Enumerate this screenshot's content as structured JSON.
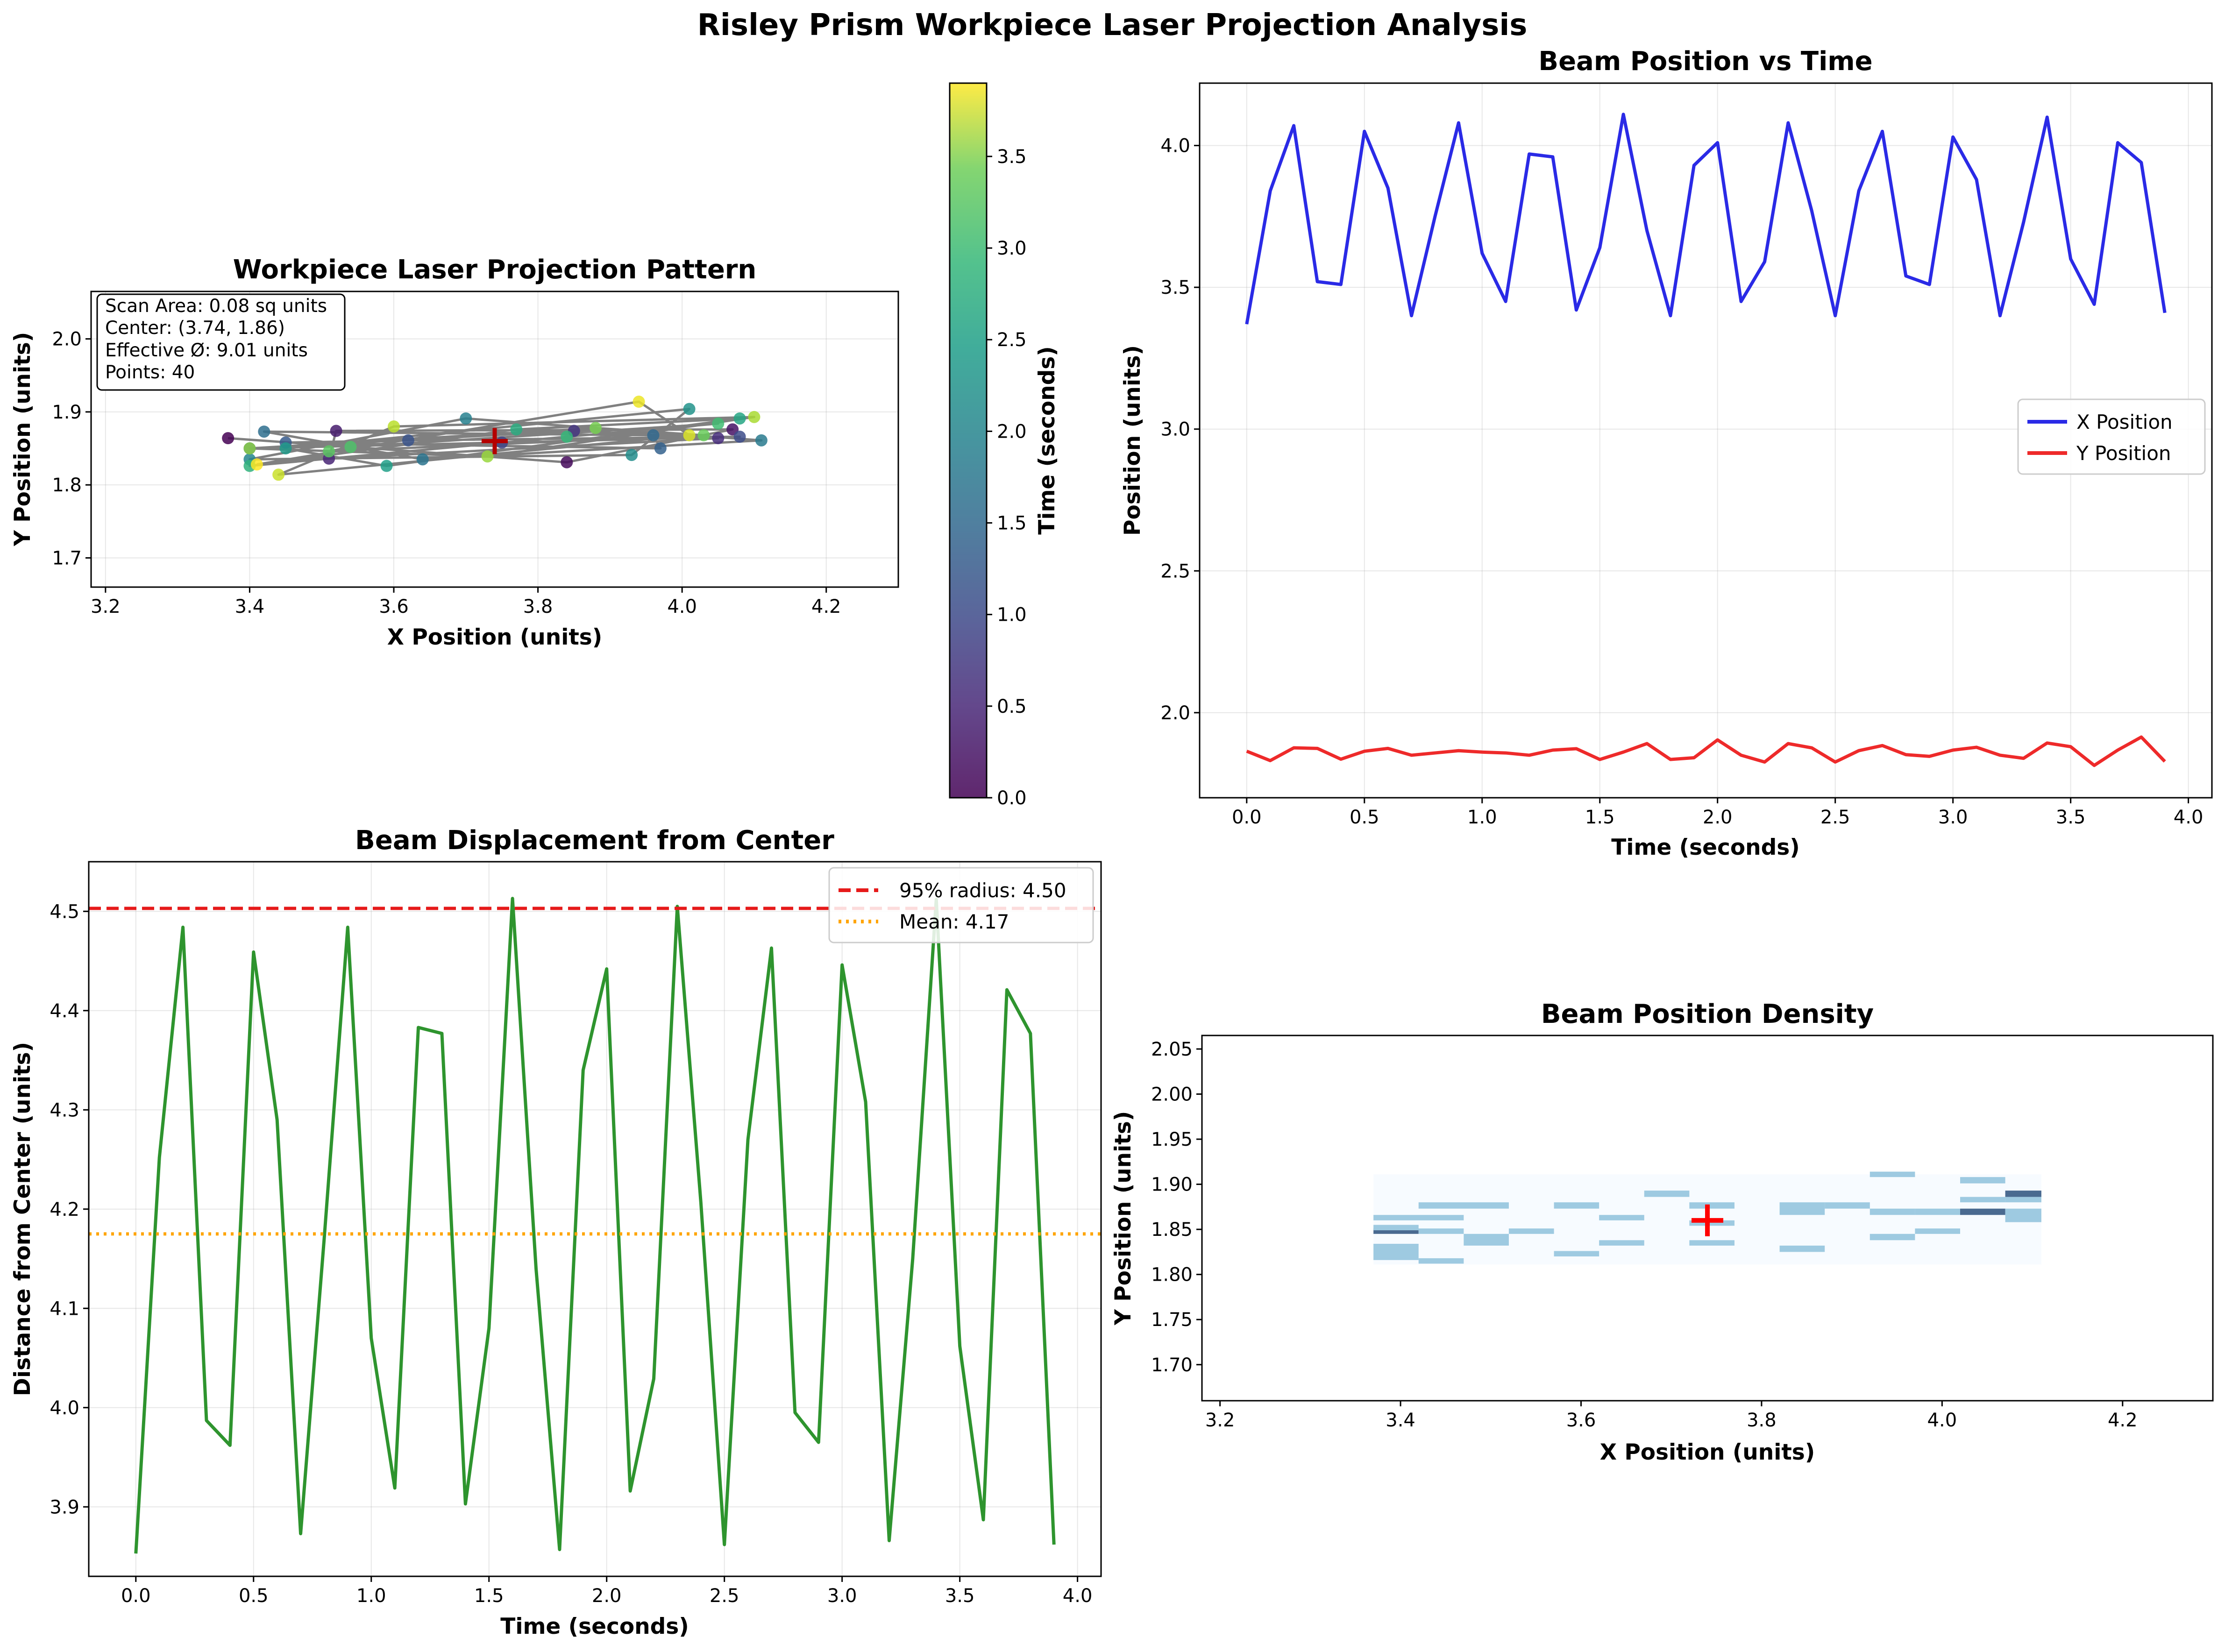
{
  "figure_title": "Risley Prism Workpiece Laser Projection Analysis",
  "colors": {
    "x_series": "#2a2ae6",
    "y_series": "#ee2a2a",
    "displacement": "#2e942e",
    "radius95": "#e61a1a",
    "mean": "#ffa500",
    "path": "#808080",
    "center_marker": "#b40000",
    "density_marker": "#ff0000"
  },
  "chart_data": [
    {
      "id": "projection",
      "type": "scatter",
      "title": "Workpiece Laser Projection Pattern",
      "xlabel": "X Position (units)",
      "ylabel": "Y Position (units)",
      "xlim": [
        3.18,
        4.3
      ],
      "ylim": [
        1.66,
        2.065
      ],
      "xticks": [
        "3.2",
        "3.4",
        "3.6",
        "3.8",
        "4.0",
        "4.2"
      ],
      "yticks": [
        "1.7",
        "1.8",
        "1.9",
        "2.0"
      ],
      "grid": true,
      "colorbar": {
        "label": "Time (seconds)",
        "range": [
          0.0,
          3.9
        ],
        "ticks": [
          "0.0",
          "0.5",
          "1.0",
          "1.5",
          "2.0",
          "2.5",
          "3.0",
          "3.5"
        ],
        "colormap": "viridis"
      },
      "center": {
        "x": 3.74,
        "y": 1.86
      },
      "info_box": [
        "Scan Area: 0.08 sq units",
        "Center: (3.74, 1.86)",
        "Effective Ø: 9.01 units",
        "Points: 40"
      ],
      "t": [
        0.0,
        0.1,
        0.2,
        0.3,
        0.4,
        0.5,
        0.6,
        0.7,
        0.8,
        0.9,
        1.0,
        1.1,
        1.2,
        1.3,
        1.4,
        1.5,
        1.6,
        1.7,
        1.8,
        1.9,
        2.0,
        2.1,
        2.2,
        2.3,
        2.4,
        2.5,
        2.6,
        2.7,
        2.8,
        2.9,
        3.0,
        3.1,
        3.2,
        3.3,
        3.4,
        3.5,
        3.6,
        3.7,
        3.8,
        3.9
      ],
      "x": [
        3.37,
        3.84,
        4.07,
        3.52,
        3.51,
        4.05,
        3.85,
        3.4,
        3.75,
        4.08,
        3.62,
        3.45,
        3.97,
        3.96,
        3.42,
        3.64,
        4.11,
        3.7,
        3.4,
        3.93,
        4.01,
        3.45,
        3.59,
        4.08,
        3.77,
        3.4,
        3.84,
        4.05,
        3.54,
        3.51,
        4.03,
        3.88,
        3.4,
        3.73,
        4.1,
        3.6,
        3.44,
        4.01,
        3.94,
        3.41
      ],
      "y": [
        1.864,
        1.831,
        1.876,
        1.874,
        1.836,
        1.864,
        1.874,
        1.85,
        1.858,
        1.866,
        1.861,
        1.858,
        1.85,
        1.868,
        1.873,
        1.835,
        1.861,
        1.891,
        1.835,
        1.841,
        1.904,
        1.85,
        1.826,
        1.891,
        1.876,
        1.826,
        1.866,
        1.884,
        1.852,
        1.846,
        1.868,
        1.878,
        1.85,
        1.839,
        1.893,
        1.88,
        1.814,
        1.868,
        1.914,
        1.828
      ]
    },
    {
      "id": "position_time",
      "type": "line",
      "title": "Beam Position vs Time",
      "xlabel": "Time (seconds)",
      "ylabel": "Position (units)",
      "xlim": [
        -0.2,
        4.1
      ],
      "ylim": [
        1.7,
        4.22
      ],
      "xticks": [
        "0.0",
        "0.5",
        "1.0",
        "1.5",
        "2.0",
        "2.5",
        "3.0",
        "3.5",
        "4.0"
      ],
      "yticks": [
        "2.0",
        "2.5",
        "3.0",
        "3.5",
        "4.0"
      ],
      "grid": true,
      "legend": "center-right",
      "series": [
        {
          "name": "X Position",
          "x": [
            0.0,
            0.1,
            0.2,
            0.3,
            0.4,
            0.5,
            0.6,
            0.7,
            0.8,
            0.9,
            1.0,
            1.1,
            1.2,
            1.3,
            1.4,
            1.5,
            1.6,
            1.7,
            1.8,
            1.9,
            2.0,
            2.1,
            2.2,
            2.3,
            2.4,
            2.5,
            2.6,
            2.7,
            2.8,
            2.9,
            3.0,
            3.1,
            3.2,
            3.3,
            3.4,
            3.5,
            3.6,
            3.7,
            3.8,
            3.9
          ],
          "values": [
            3.37,
            3.84,
            4.07,
            3.52,
            3.51,
            4.05,
            3.85,
            3.4,
            3.75,
            4.08,
            3.62,
            3.45,
            3.97,
            3.96,
            3.42,
            3.64,
            4.11,
            3.7,
            3.4,
            3.93,
            4.01,
            3.45,
            3.59,
            4.08,
            3.77,
            3.4,
            3.84,
            4.05,
            3.54,
            3.51,
            4.03,
            3.88,
            3.4,
            3.73,
            4.1,
            3.6,
            3.44,
            4.01,
            3.94,
            3.41
          ]
        },
        {
          "name": "Y Position",
          "x": [
            0.0,
            0.1,
            0.2,
            0.3,
            0.4,
            0.5,
            0.6,
            0.7,
            0.8,
            0.9,
            1.0,
            1.1,
            1.2,
            1.3,
            1.4,
            1.5,
            1.6,
            1.7,
            1.8,
            1.9,
            2.0,
            2.1,
            2.2,
            2.3,
            2.4,
            2.5,
            2.6,
            2.7,
            2.8,
            2.9,
            3.0,
            3.1,
            3.2,
            3.3,
            3.4,
            3.5,
            3.6,
            3.7,
            3.8,
            3.9
          ],
          "values": [
            1.864,
            1.831,
            1.876,
            1.874,
            1.836,
            1.864,
            1.874,
            1.85,
            1.858,
            1.866,
            1.861,
            1.858,
            1.85,
            1.868,
            1.873,
            1.835,
            1.861,
            1.891,
            1.835,
            1.841,
            1.904,
            1.85,
            1.826,
            1.891,
            1.876,
            1.826,
            1.866,
            1.884,
            1.852,
            1.846,
            1.868,
            1.878,
            1.85,
            1.839,
            1.893,
            1.88,
            1.814,
            1.868,
            1.914,
            1.828
          ]
        }
      ]
    },
    {
      "id": "displacement",
      "type": "line",
      "title": "Beam Displacement from Center",
      "xlabel": "Time (seconds)",
      "ylabel": "Distance from Center (units)",
      "xlim": [
        -0.2,
        4.1
      ],
      "ylim": [
        3.83,
        4.55
      ],
      "xticks": [
        "0.0",
        "0.5",
        "1.0",
        "1.5",
        "2.0",
        "2.5",
        "3.0",
        "3.5",
        "4.0"
      ],
      "yticks": [
        "3.9",
        "4.0",
        "4.1",
        "4.2",
        "4.3",
        "4.4",
        "4.5"
      ],
      "grid": true,
      "legend": "top-right",
      "hlines": [
        {
          "name": "95% radius: 4.50",
          "value": 4.503
        },
        {
          "name": "Mean: 4.17",
          "value": 4.175
        }
      ],
      "series": [
        {
          "name": "",
          "x": [
            0.0,
            0.1,
            0.2,
            0.3,
            0.4,
            0.5,
            0.6,
            0.7,
            0.8,
            0.9,
            1.0,
            1.1,
            1.2,
            1.3,
            1.4,
            1.5,
            1.6,
            1.7,
            1.8,
            1.9,
            2.0,
            2.1,
            2.2,
            2.3,
            2.4,
            2.5,
            2.6,
            2.7,
            2.8,
            2.9,
            3.0,
            3.1,
            3.2,
            3.3,
            3.4,
            3.5,
            3.6,
            3.7,
            3.8,
            3.9
          ],
          "values": [
            3.853,
            4.252,
            4.484,
            3.987,
            3.962,
            4.459,
            4.29,
            3.873,
            4.17,
            4.484,
            4.07,
            3.919,
            4.383,
            4.377,
            3.903,
            4.08,
            4.513,
            4.14,
            3.857,
            4.34,
            4.442,
            3.916,
            4.029,
            4.505,
            4.207,
            3.862,
            4.27,
            4.463,
            3.995,
            3.965,
            4.446,
            4.308,
            3.866,
            4.15,
            4.512,
            4.062,
            3.887,
            4.421,
            4.377,
            3.862
          ]
        }
      ]
    },
    {
      "id": "density",
      "type": "heatmap",
      "title": "Beam Position Density",
      "xlabel": "X Position (units)",
      "ylabel": "Y Position (units)",
      "xlim": [
        3.18,
        4.3
      ],
      "ylim": [
        1.66,
        2.065
      ],
      "xticks": [
        "3.2",
        "3.4",
        "3.6",
        "3.8",
        "4.0",
        "4.2"
      ],
      "yticks": [
        "1.70",
        "1.75",
        "1.80",
        "1.85",
        "1.90",
        "1.95",
        "2.00",
        "2.05"
      ],
      "extent": {
        "x": [
          3.37,
          4.11
        ],
        "y": [
          1.811,
          1.911
        ]
      },
      "center": {
        "x": 3.74,
        "y": 1.86
      },
      "cells": [
        {
          "x": [
            3.37,
            3.42
          ],
          "y": [
            1.816,
            1.834
          ],
          "count": 2
        },
        {
          "x": [
            3.37,
            3.42
          ],
          "y": [
            1.845,
            1.851
          ],
          "count": 4
        },
        {
          "x": [
            3.37,
            3.47
          ],
          "y": [
            1.86,
            1.866
          ],
          "count": 2
        },
        {
          "x": [
            3.37,
            3.42
          ],
          "y": [
            1.849,
            1.855
          ],
          "count": 2
        },
        {
          "x": [
            3.42,
            3.47
          ],
          "y": [
            1.812,
            1.818
          ],
          "count": 2
        },
        {
          "x": [
            3.42,
            3.47
          ],
          "y": [
            1.845,
            1.851
          ],
          "count": 2
        },
        {
          "x": [
            3.42,
            3.52
          ],
          "y": [
            1.873,
            1.88
          ],
          "count": 2
        },
        {
          "x": [
            3.47,
            3.52
          ],
          "y": [
            1.832,
            1.845
          ],
          "count": 2
        },
        {
          "x": [
            3.52,
            3.57
          ],
          "y": [
            1.845,
            1.851
          ],
          "count": 2
        },
        {
          "x": [
            3.57,
            3.62
          ],
          "y": [
            1.82,
            1.826
          ],
          "count": 2
        },
        {
          "x": [
            3.57,
            3.62
          ],
          "y": [
            1.873,
            1.88
          ],
          "count": 2
        },
        {
          "x": [
            3.62,
            3.67
          ],
          "y": [
            1.832,
            1.838
          ],
          "count": 2
        },
        {
          "x": [
            3.62,
            3.67
          ],
          "y": [
            1.86,
            1.866
          ],
          "count": 2
        },
        {
          "x": [
            3.67,
            3.72
          ],
          "y": [
            1.886,
            1.893
          ],
          "count": 2
        },
        {
          "x": [
            3.72,
            3.77
          ],
          "y": [
            1.832,
            1.838
          ],
          "count": 2
        },
        {
          "x": [
            3.72,
            3.77
          ],
          "y": [
            1.854,
            1.86
          ],
          "count": 2
        },
        {
          "x": [
            3.72,
            3.77
          ],
          "y": [
            1.873,
            1.88
          ],
          "count": 2
        },
        {
          "x": [
            3.82,
            3.87
          ],
          "y": [
            1.825,
            1.832
          ],
          "count": 2
        },
        {
          "x": [
            3.82,
            3.87
          ],
          "y": [
            1.866,
            1.88
          ],
          "count": 2
        },
        {
          "x": [
            3.87,
            3.92
          ],
          "y": [
            1.873,
            1.88
          ],
          "count": 2
        },
        {
          "x": [
            3.92,
            3.97
          ],
          "y": [
            1.838,
            1.845
          ],
          "count": 2
        },
        {
          "x": [
            3.92,
            3.97
          ],
          "y": [
            1.866,
            1.873
          ],
          "count": 2
        },
        {
          "x": [
            3.92,
            3.97
          ],
          "y": [
            1.908,
            1.914
          ],
          "count": 2
        },
        {
          "x": [
            3.97,
            4.02
          ],
          "y": [
            1.845,
            1.851
          ],
          "count": 2
        },
        {
          "x": [
            3.97,
            4.02
          ],
          "y": [
            1.866,
            1.873
          ],
          "count": 2
        },
        {
          "x": [
            4.02,
            4.07
          ],
          "y": [
            1.866,
            1.873
          ],
          "count": 4
        },
        {
          "x": [
            4.02,
            4.07
          ],
          "y": [
            1.88,
            1.886
          ],
          "count": 2
        },
        {
          "x": [
            4.02,
            4.07
          ],
          "y": [
            1.901,
            1.908
          ],
          "count": 2
        },
        {
          "x": [
            4.07,
            4.11
          ],
          "y": [
            1.858,
            1.873
          ],
          "count": 2
        },
        {
          "x": [
            4.07,
            4.11
          ],
          "y": [
            1.88,
            1.886
          ],
          "count": 2
        },
        {
          "x": [
            4.07,
            4.11
          ],
          "y": [
            1.886,
            1.893
          ],
          "count": 4
        }
      ]
    }
  ]
}
